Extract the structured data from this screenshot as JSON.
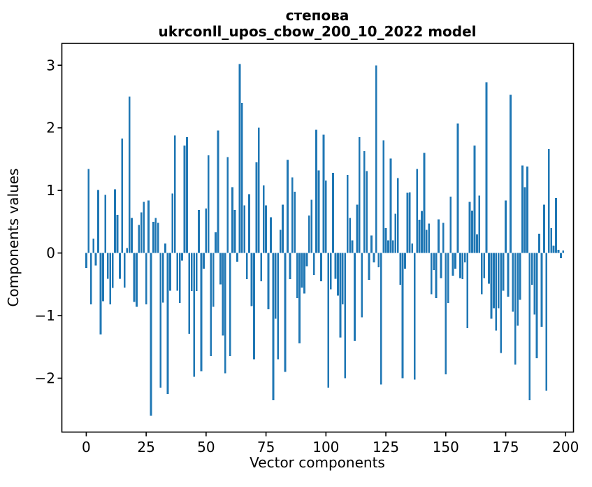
{
  "figure": {
    "title_line1": "степова",
    "title_line2": "ukrconll_upos_cbow_200_10_2022 model",
    "xlabel": "Vector components",
    "ylabel": "Components values"
  },
  "chart_data": {
    "type": "bar",
    "title": "степова\nukrconll_upos_cbow_200_10_2022 model",
    "xlabel": "Vector components",
    "ylabel": "Components values",
    "bar_color": "#1f77b4",
    "axis_color": "#000000",
    "x_range": [
      0,
      199
    ],
    "ylim": [
      -2.85,
      3.35
    ],
    "xtick_values": [
      0,
      25,
      50,
      75,
      100,
      125,
      150,
      175,
      200
    ],
    "xtick_labels": [
      "0",
      "25",
      "50",
      "75",
      "100",
      "125",
      "150",
      "175",
      "200"
    ],
    "ytick_values": [
      3,
      2,
      1,
      0,
      -1,
      -2
    ],
    "ytick_labels": [
      "3",
      "2",
      "1",
      "0",
      "−1",
      "−2"
    ],
    "grid": false,
    "legend": null,
    "values": [
      -0.24,
      1.34,
      -0.82,
      0.23,
      -0.2,
      1.01,
      -1.3,
      -0.77,
      0.93,
      -0.41,
      -0.82,
      -0.56,
      1.02,
      0.61,
      -0.41,
      1.83,
      -0.55,
      0.08,
      2.5,
      0.56,
      -0.78,
      -0.86,
      0.45,
      0.65,
      0.82,
      -0.82,
      0.84,
      -2.6,
      0.5,
      0.56,
      0.48,
      -2.15,
      -0.79,
      0.15,
      -2.25,
      -0.6,
      0.95,
      1.88,
      -0.6,
      -0.8,
      -0.12,
      1.72,
      1.85,
      -1.29,
      -0.61,
      -1.98,
      -0.61,
      0.69,
      -1.89,
      -0.25,
      0.71,
      1.56,
      -1.65,
      -0.86,
      0.33,
      1.96,
      -0.5,
      -1.32,
      -1.92,
      1.53,
      -1.65,
      1.05,
      0.69,
      -0.14,
      3.02,
      2.4,
      0.76,
      -0.42,
      0.94,
      -0.85,
      -1.7,
      1.45,
      2.0,
      -0.45,
      1.08,
      0.76,
      -0.9,
      0.57,
      -2.35,
      -1.05,
      -1.7,
      0.37,
      0.77,
      -1.9,
      1.49,
      -0.42,
      1.21,
      0.98,
      -0.72,
      -1.44,
      -0.55,
      -0.65,
      -0.21,
      0.6,
      0.85,
      -0.35,
      1.97,
      1.32,
      -0.45,
      1.89,
      1.16,
      -2.15,
      -0.58,
      1.28,
      -0.41,
      -0.68,
      -1.35,
      -0.82,
      -2.0,
      1.25,
      0.56,
      0.2,
      -1.4,
      0.77,
      1.85,
      -1.03,
      1.63,
      1.31,
      -0.43,
      0.28,
      -0.15,
      3.0,
      -0.23,
      -2.1,
      1.8,
      0.4,
      0.2,
      1.51,
      0.2,
      0.63,
      1.2,
      -0.51,
      -2.0,
      -0.25,
      0.96,
      0.97,
      0.15,
      -2.02,
      1.34,
      0.53,
      0.67,
      1.6,
      0.37,
      0.47,
      -0.66,
      -0.27,
      -0.72,
      0.54,
      -0.4,
      0.48,
      -1.94,
      -0.8,
      0.9,
      -0.36,
      -0.25,
      2.07,
      -0.4,
      -0.42,
      -0.15,
      -1.2,
      0.82,
      0.68,
      1.72,
      0.3,
      0.92,
      -0.66,
      -0.4,
      2.73,
      -0.49,
      -1.05,
      -0.88,
      -1.24,
      -0.88,
      -1.6,
      -0.6,
      0.84,
      -0.7,
      2.53,
      -0.94,
      -1.78,
      -1.16,
      -0.75,
      1.4,
      1.05,
      1.38,
      -2.35,
      -0.51,
      -0.98,
      -1.68,
      0.31,
      -1.18,
      0.77,
      -2.2,
      1.66,
      0.4,
      0.12,
      0.88,
      0.05,
      -0.08,
      0.04
    ]
  }
}
